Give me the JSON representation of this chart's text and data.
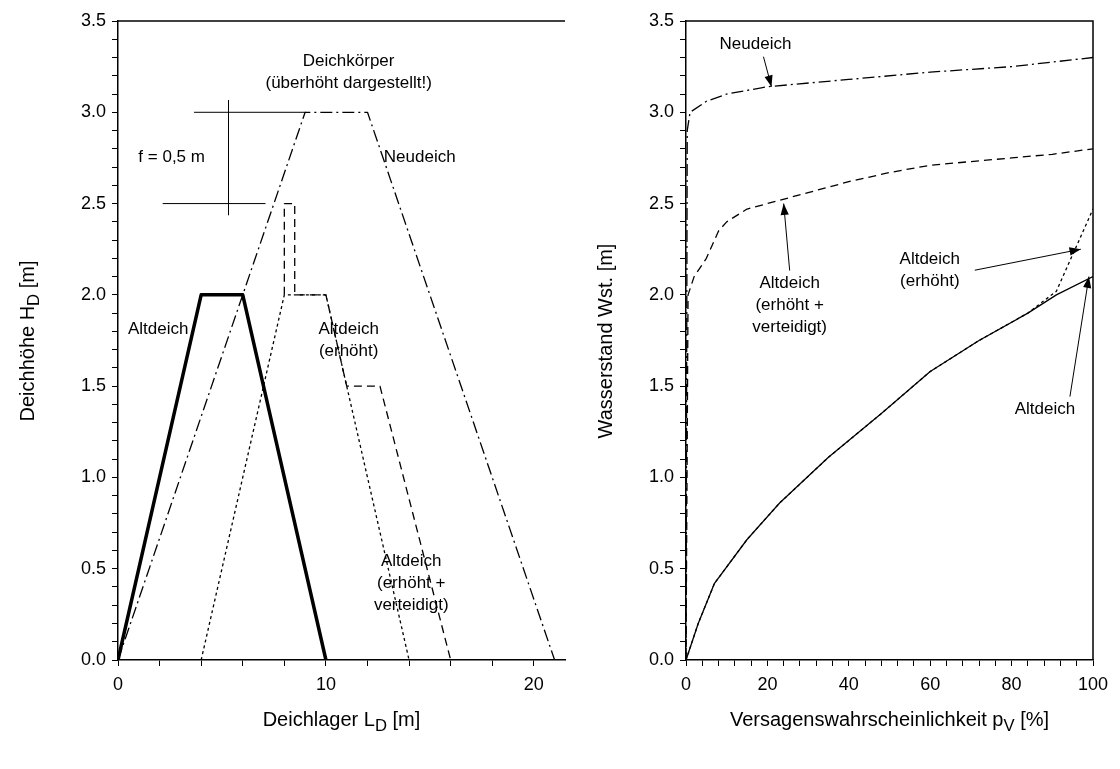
{
  "chart_data": [
    {
      "type": "line",
      "xlabel": "Deichlager L$_{D}$ [m]",
      "ylabel": "Deichhöhe H$_{D}$ [m]",
      "xlim": [
        0,
        21.5
      ],
      "xticks": [
        0,
        {
          "value": 2,
          "label": null
        },
        {
          "value": 4,
          "label": null
        },
        {
          "value": 6,
          "label": null
        },
        {
          "value": 8,
          "label": null
        },
        10,
        {
          "value": 12,
          "label": null
        },
        {
          "value": 14,
          "label": null
        },
        {
          "value": 16,
          "label": null
        },
        {
          "value": 18,
          "label": null
        },
        20
      ],
      "ylim": [
        0,
        3.5
      ],
      "yticks": [
        {
          "value": 0,
          "label": "0.0"
        },
        {
          "value": 0.1,
          "label": null
        },
        {
          "value": 0.2,
          "label": null
        },
        {
          "value": 0.3,
          "label": null
        },
        {
          "value": 0.4,
          "label": null
        },
        {
          "value": 0.5,
          "label": "0.5"
        },
        {
          "value": 0.6,
          "label": null
        },
        {
          "value": 0.7,
          "label": null
        },
        {
          "value": 0.8,
          "label": null
        },
        {
          "value": 0.9,
          "label": null
        },
        {
          "value": 1,
          "label": "1.0"
        },
        {
          "value": 1.1,
          "label": null
        },
        {
          "value": 1.2,
          "label": null
        },
        {
          "value": 1.3,
          "label": null
        },
        {
          "value": 1.4,
          "label": null
        },
        {
          "value": 1.5,
          "label": "1.5"
        },
        {
          "value": 1.6,
          "label": null
        },
        {
          "value": 1.7,
          "label": null
        },
        {
          "value": 1.8,
          "label": null
        },
        {
          "value": 1.9,
          "label": null
        },
        {
          "value": 2,
          "label": "2.0"
        },
        {
          "value": 2.1,
          "label": null
        },
        {
          "value": 2.2,
          "label": null
        },
        {
          "value": 2.3,
          "label": null
        },
        {
          "value": 2.4,
          "label": null
        },
        {
          "value": 2.5,
          "label": "2.5"
        },
        {
          "value": 2.6,
          "label": null
        },
        {
          "value": 2.7,
          "label": null
        },
        {
          "value": 2.8,
          "label": null
        },
        {
          "value": 2.9,
          "label": null
        },
        {
          "value": 3,
          "label": "3.0"
        },
        {
          "value": 3.1,
          "label": null
        },
        {
          "value": 3.2,
          "label": null
        },
        {
          "value": 3.3,
          "label": null
        },
        {
          "value": 3.4,
          "label": null
        },
        {
          "value": 3.5,
          "label": "3.5"
        }
      ],
      "series": [
        {
          "color": "#000000",
          "line_style": "solid",
          "x": [
            0,
            4,
            6,
            10
          ],
          "values": [
            0,
            2,
            2,
            0
          ]
        },
        {
          "color": "#000000",
          "line_style": "dotted",
          "x": [
            4,
            8,
            10,
            14
          ],
          "values": [
            0,
            2,
            2,
            0
          ]
        },
        {
          "color": "#000000",
          "line_style": "dashed",
          "x": [
            8,
            8,
            8.5,
            8.5,
            10,
            11,
            12.6,
            16
          ],
          "values": [
            2,
            2.5,
            2.5,
            2,
            2,
            1.5,
            1.5,
            0
          ]
        },
        {
          "color": "#000000",
          "line_style": "dashdot",
          "x": [
            0,
            9,
            12,
            21
          ],
          "values": [
            0,
            3,
            3,
            0
          ]
        }
      ],
      "ref_lines": [
        {
          "axis": "y",
          "value": 3,
          "color": "#000000"
        },
        {
          "axis": "y",
          "value": 2.5,
          "color": "#000000"
        }
      ],
      "annotations": [
        "Deichkörper\n(überhöht dargestellt!)",
        "Neudeich",
        "Altdeich",
        "Altdeich\n(erhöht)",
        "Altdeich\n(erhöht +\nverteidigt)",
        "f = 0,5 m"
      ]
    },
    {
      "type": "line",
      "xlabel": "Versagenswahrscheinlichkeit p$_{V}$ [%]",
      "ylabel": "Wasserstand Wst. [m]",
      "xlim": [
        0,
        100
      ],
      "xticks": [
        0,
        {
          "value": 4,
          "label": null
        },
        {
          "value": 8,
          "label": null
        },
        {
          "value": 12,
          "label": null
        },
        {
          "value": 16,
          "label": null
        },
        20,
        {
          "value": 24,
          "label": null
        },
        {
          "value": 28,
          "label": null
        },
        {
          "value": 32,
          "label": null
        },
        {
          "value": 36,
          "label": null
        },
        40,
        {
          "value": 44,
          "label": null
        },
        {
          "value": 48,
          "label": null
        },
        {
          "value": 52,
          "label": null
        },
        {
          "value": 56,
          "label": null
        },
        60,
        {
          "value": 64,
          "label": null
        },
        {
          "value": 68,
          "label": null
        },
        {
          "value": 72,
          "label": null
        },
        {
          "value": 76,
          "label": null
        },
        80,
        {
          "value": 84,
          "label": null
        },
        {
          "value": 88,
          "label": null
        },
        {
          "value": 92,
          "label": null
        },
        {
          "value": 96,
          "label": null
        },
        100
      ],
      "ylim": [
        0,
        3.5
      ],
      "yticks": [
        {
          "value": 0,
          "label": "0.0"
        },
        {
          "value": 0.1,
          "label": null
        },
        {
          "value": 0.2,
          "label": null
        },
        {
          "value": 0.3,
          "label": null
        },
        {
          "value": 0.4,
          "label": null
        },
        {
          "value": 0.5,
          "label": "0.5"
        },
        {
          "value": 0.6,
          "label": null
        },
        {
          "value": 0.7,
          "label": null
        },
        {
          "value": 0.8,
          "label": null
        },
        {
          "value": 0.9,
          "label": null
        },
        {
          "value": 1,
          "label": "1.0"
        },
        {
          "value": 1.1,
          "label": null
        },
        {
          "value": 1.2,
          "label": null
        },
        {
          "value": 1.3,
          "label": null
        },
        {
          "value": 1.4,
          "label": null
        },
        {
          "value": 1.5,
          "label": "1.5"
        },
        {
          "value": 1.6,
          "label": null
        },
        {
          "value": 1.7,
          "label": null
        },
        {
          "value": 1.8,
          "label": null
        },
        {
          "value": 1.9,
          "label": null
        },
        {
          "value": 2,
          "label": "2.0"
        },
        {
          "value": 2.1,
          "label": null
        },
        {
          "value": 2.2,
          "label": null
        },
        {
          "value": 2.3,
          "label": null
        },
        {
          "value": 2.4,
          "label": null
        },
        {
          "value": 2.5,
          "label": "2.5"
        },
        {
          "value": 2.6,
          "label": null
        },
        {
          "value": 2.7,
          "label": null
        },
        {
          "value": 2.8,
          "label": null
        },
        {
          "value": 2.9,
          "label": null
        },
        {
          "value": 3,
          "label": "3.0"
        },
        {
          "value": 3.1,
          "label": null
        },
        {
          "value": 3.2,
          "label": null
        },
        {
          "value": 3.3,
          "label": null
        },
        {
          "value": 3.4,
          "label": null
        },
        {
          "value": 3.5,
          "label": "3.5"
        }
      ],
      "series": [
        {
          "color": "#000000",
          "line_style": "solid",
          "x": [
            0,
            3,
            7,
            15,
            23,
            35,
            48,
            60,
            72,
            84,
            91,
            100
          ],
          "values": [
            0,
            0.2,
            0.42,
            0.66,
            0.86,
            1.11,
            1.35,
            1.58,
            1.75,
            1.9,
            2.0,
            2.1
          ]
        },
        {
          "color": "#000000",
          "line_style": "dotted",
          "x": [
            0,
            3,
            7,
            15,
            23,
            35,
            48,
            60,
            72,
            84,
            91,
            95,
            100
          ],
          "values": [
            0,
            0.2,
            0.42,
            0.66,
            0.86,
            1.11,
            1.35,
            1.58,
            1.75,
            1.9,
            2.02,
            2.22,
            2.47
          ]
        },
        {
          "color": "#000000",
          "line_style": "dashed",
          "x": [
            0,
            0.5,
            2,
            5,
            8,
            10,
            15,
            20,
            30,
            40,
            50,
            60,
            70,
            80,
            90,
            100
          ],
          "values": [
            0,
            2.0,
            2.1,
            2.2,
            2.35,
            2.4,
            2.47,
            2.5,
            2.56,
            2.62,
            2.67,
            2.71,
            2.73,
            2.75,
            2.77,
            2.8
          ]
        },
        {
          "color": "#000000",
          "line_style": "dashdot",
          "x": [
            0,
            0.3,
            1,
            5,
            10,
            20,
            40,
            60,
            80,
            100
          ],
          "values": [
            0,
            2.9,
            3.0,
            3.06,
            3.1,
            3.14,
            3.18,
            3.22,
            3.25,
            3.3
          ]
        }
      ],
      "annotations": [
        {
          "text": "Neudeich",
          "x": 21,
          "y": 3.14
        },
        {
          "text": "Altdeich\n(erhöht +\nverteidigt)",
          "x": 24,
          "y": 2.5
        },
        {
          "text": "Altdeich\n(erhöht)",
          "x": 97,
          "y": 2.25
        },
        {
          "text": "Altdeich",
          "x": 99,
          "y": 2.1
        }
      ]
    }
  ]
}
